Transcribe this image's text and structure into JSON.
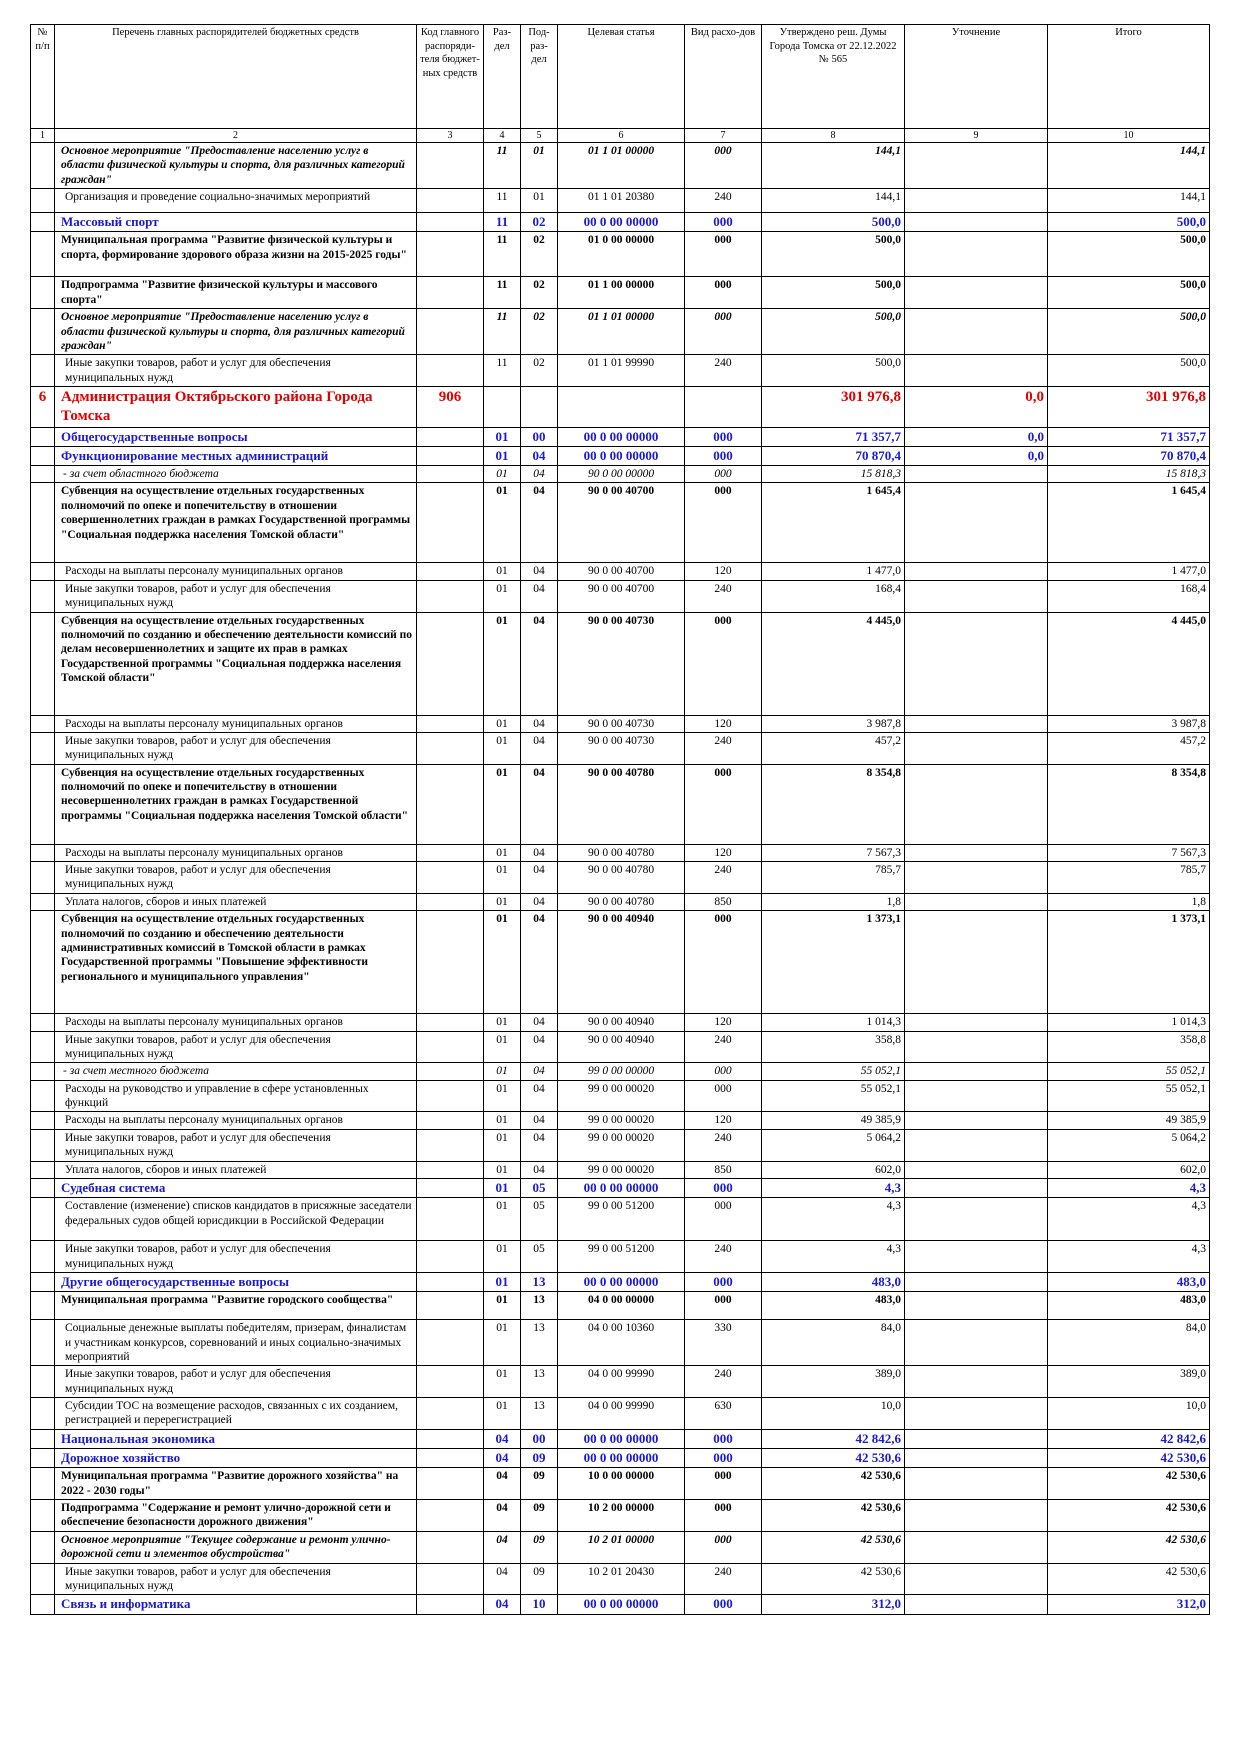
{
  "header": {
    "no": "№ п/п",
    "name": "Перечень главных распорядителей бюджетных средств",
    "code": "Код главного распоряди-теля бюджет-ных средств",
    "razdel": "Раз-дел",
    "podrazdel": "Под-раз-дел",
    "article": "Целевая статья",
    "vid": "Вид расхо-дов",
    "approved": "Утверждено реш. Думы Города Томска от 22.12.2022 № 565",
    "clarify": "Уточнение",
    "total": "Итого"
  },
  "numbers": [
    "1",
    "2",
    "3",
    "4",
    "5",
    "6",
    "7",
    "8",
    "9",
    "10"
  ],
  "rows": [
    {
      "cls": "bi",
      "h": 43,
      "no": "",
      "name": "Основное мероприятие \"Предоставление населению услуг в области физической культуры и спорта, для различных категорий граждан\"",
      "code": "",
      "rz": "11",
      "pr": "01",
      "cs": "01 1 01 00000",
      "vr": "000",
      "approved": "144,1",
      "clarify": "",
      "total": "144,1"
    },
    {
      "cls": "plain",
      "h": 24,
      "no": "",
      "name": "Организация и проведение социально-значимых мероприятий",
      "code": "",
      "rz": "11",
      "pr": "01",
      "cs": "01 1 01 20380",
      "vr": "240",
      "approved": "144,1",
      "clarify": "",
      "total": "144,1"
    },
    {
      "cls": "blue",
      "h": 17,
      "no": "",
      "name": "Массовый спорт",
      "code": "",
      "rz": "11",
      "pr": "02",
      "cs": "00 0 00 00000",
      "vr": "000",
      "approved": "500,0",
      "clarify": "",
      "total": "500,0"
    },
    {
      "cls": "bold",
      "h": 45,
      "no": "",
      "name": "Муниципальная программа \"Развитие физической культуры и спорта, формирование здорового образа жизни на 2015-2025 годы\"",
      "code": "",
      "rz": "11",
      "pr": "02",
      "cs": "01 0 00 00000",
      "vr": "000",
      "approved": "500,0",
      "clarify": "",
      "total": "500,0"
    },
    {
      "cls": "bold",
      "h": 30,
      "no": "",
      "name": "Подпрограмма \"Развитие физической культуры и массового спорта\"",
      "code": "",
      "rz": "11",
      "pr": "02",
      "cs": "01 1 00 00000",
      "vr": "000",
      "approved": "500,0",
      "clarify": "",
      "total": "500,0"
    },
    {
      "cls": "bi",
      "h": 43,
      "no": "",
      "name": "Основное мероприятие \"Предоставление населению услуг в области физической культуры и спорта, для различных категорий граждан\"",
      "code": "",
      "rz": "11",
      "pr": "02",
      "cs": "01 1 01 00000",
      "vr": "000",
      "approved": "500,0",
      "clarify": "",
      "total": "500,0"
    },
    {
      "cls": "plain",
      "h": 30,
      "no": "",
      "name": "Иные закупки товаров, работ и услуг для обеспечения муниципальных нужд",
      "code": "",
      "rz": "11",
      "pr": "02",
      "cs": "01 1 01 99990",
      "vr": "240",
      "approved": "500,0",
      "clarify": "",
      "total": "500,0"
    },
    {
      "cls": "red",
      "h": 40,
      "no": "6",
      "name": "Администрация Октябрьского района Города Томска",
      "code": "906",
      "rz": "",
      "pr": "",
      "cs": "",
      "vr": "",
      "approved": "301 976,8",
      "clarify": "0,0",
      "total": "301 976,8"
    },
    {
      "cls": "blue",
      "h": 17,
      "no": "",
      "name": "Общегосударственные вопросы",
      "code": "",
      "rz": "01",
      "pr": "00",
      "cs": "00 0 00 00000",
      "vr": "000",
      "approved": "71 357,7",
      "clarify": "0,0",
      "total": "71 357,7"
    },
    {
      "cls": "blue",
      "h": 17,
      "no": "",
      "name": "Функционирование местных администраций",
      "code": "",
      "rz": "01",
      "pr": "04",
      "cs": "00 0 00 00000",
      "vr": "000",
      "approved": "70 870,4",
      "clarify": "0,0",
      "total": "70 870,4"
    },
    {
      "cls": "it",
      "h": 17,
      "no": "",
      "name": "- за счет областного бюджета",
      "code": "",
      "rz": "01",
      "pr": "04",
      "cs": "90 0 00 00000",
      "vr": "000",
      "approved": "15 818,3",
      "clarify": "",
      "total": "15 818,3"
    },
    {
      "cls": "bold",
      "h": 80,
      "no": "",
      "name": "Субвенция на осуществление отдельных государственных полномочий по опеке и попечительству в отношении совершеннолетних граждан в рамках Государственной программы \"Социальная поддержка населения Томской области\"",
      "code": "",
      "rz": "01",
      "pr": "04",
      "cs": "90 0 00 40700",
      "vr": "000",
      "approved": "1 645,4",
      "clarify": "",
      "total": "1 645,4"
    },
    {
      "cls": "plain",
      "h": 17,
      "no": "",
      "name": "Расходы на выплаты персоналу муниципальных органов",
      "code": "",
      "rz": "01",
      "pr": "04",
      "cs": "90 0 00 40700",
      "vr": "120",
      "approved": "1 477,0",
      "clarify": "",
      "total": "1 477,0"
    },
    {
      "cls": "plain",
      "h": 28,
      "no": "",
      "name": "Иные закупки товаров, работ и услуг для обеспечения муниципальных нужд",
      "code": "",
      "rz": "01",
      "pr": "04",
      "cs": "90 0 00 40700",
      "vr": "240",
      "approved": "168,4",
      "clarify": "",
      "total": "168,4"
    },
    {
      "cls": "bold",
      "h": 103,
      "no": "",
      "name": "Субвенция на осуществление отдельных государственных полномочий по созданию и обеспечению деятельности комиссий по делам несовершеннолетних и защите их прав в рамках Государственной программы \"Социальная поддержка населения Томской области\"",
      "code": "",
      "rz": "01",
      "pr": "04",
      "cs": "90 0 00 40730",
      "vr": "000",
      "approved": "4 445,0",
      "clarify": "",
      "total": "4 445,0"
    },
    {
      "cls": "plain",
      "h": 17,
      "no": "",
      "name": "Расходы на выплаты персоналу муниципальных органов",
      "code": "",
      "rz": "01",
      "pr": "04",
      "cs": "90 0 00 40730",
      "vr": "120",
      "approved": "3 987,8",
      "clarify": "",
      "total": "3 987,8"
    },
    {
      "cls": "plain",
      "h": 28,
      "no": "",
      "name": "Иные закупки товаров, работ и услуг для обеспечения муниципальных нужд",
      "code": "",
      "rz": "01",
      "pr": "04",
      "cs": "90 0 00 40730",
      "vr": "240",
      "approved": "457,2",
      "clarify": "",
      "total": "457,2"
    },
    {
      "cls": "bold",
      "h": 80,
      "no": "",
      "name": "Субвенция на осуществление отдельных государственных полномочий по опеке и попечительству в отношении несовершеннолетних граждан в рамках Государственной программы \"Социальная поддержка населения Томской области\"",
      "code": "",
      "rz": "01",
      "pr": "04",
      "cs": "90 0 00 40780",
      "vr": "000",
      "approved": "8 354,8",
      "clarify": "",
      "total": "8 354,8"
    },
    {
      "cls": "plain",
      "h": 17,
      "no": "",
      "name": "Расходы на выплаты персоналу муниципальных органов",
      "code": "",
      "rz": "01",
      "pr": "04",
      "cs": "90 0 00 40780",
      "vr": "120",
      "approved": "7 567,3",
      "clarify": "",
      "total": "7 567,3"
    },
    {
      "cls": "plain",
      "h": 28,
      "no": "",
      "name": "Иные закупки товаров, работ и услуг для обеспечения муниципальных нужд",
      "code": "",
      "rz": "01",
      "pr": "04",
      "cs": "90 0 00 40780",
      "vr": "240",
      "approved": "785,7",
      "clarify": "",
      "total": "785,7"
    },
    {
      "cls": "plain",
      "h": 17,
      "no": "",
      "name": "Уплата налогов, сборов и иных платежей",
      "code": "",
      "rz": "01",
      "pr": "04",
      "cs": "90 0 00 40780",
      "vr": "850",
      "approved": "1,8",
      "clarify": "",
      "total": "1,8"
    },
    {
      "cls": "bold",
      "h": 103,
      "no": "",
      "name": "Субвенция на осуществление отдельных государственных полномочий по созданию и обеспечению деятельности административных комиссий в Томской области в рамках Государственной программы \"Повышение эффективности регионального и муниципального управления\"",
      "code": "",
      "rz": "01",
      "pr": "04",
      "cs": "90 0 00 40940",
      "vr": "000",
      "approved": "1 373,1",
      "clarify": "",
      "total": "1 373,1"
    },
    {
      "cls": "plain",
      "h": 17,
      "no": "",
      "name": "Расходы на выплаты персоналу муниципальных органов",
      "code": "",
      "rz": "01",
      "pr": "04",
      "cs": "90 0 00 40940",
      "vr": "120",
      "approved": "1 014,3",
      "clarify": "",
      "total": "1 014,3"
    },
    {
      "cls": "plain",
      "h": 28,
      "no": "",
      "name": "Иные закупки товаров, работ и услуг для обеспечения муниципальных нужд",
      "code": "",
      "rz": "01",
      "pr": "04",
      "cs": "90 0 00 40940",
      "vr": "240",
      "approved": "358,8",
      "clarify": "",
      "total": "358,8"
    },
    {
      "cls": "it",
      "h": 17,
      "no": "",
      "name": "- за счет местного бюджета",
      "code": "",
      "rz": "01",
      "pr": "04",
      "cs": "99 0 00 00000",
      "vr": "000",
      "approved": "55 052,1",
      "clarify": "",
      "total": "55 052,1"
    },
    {
      "cls": "plain",
      "h": 28,
      "no": "",
      "name": "Расходы на руководство и управление в сфере установленных функций",
      "code": "",
      "rz": "01",
      "pr": "04",
      "cs": "99 0 00 00020",
      "vr": "000",
      "approved": "55 052,1",
      "clarify": "",
      "total": "55 052,1"
    },
    {
      "cls": "plain",
      "h": 17,
      "no": "",
      "name": "Расходы на выплаты персоналу муниципальных органов",
      "code": "",
      "rz": "01",
      "pr": "04",
      "cs": "99 0 00 00020",
      "vr": "120",
      "approved": "49 385,9",
      "clarify": "",
      "total": "49 385,9"
    },
    {
      "cls": "plain",
      "h": 28,
      "no": "",
      "name": "Иные закупки товаров, работ и услуг для обеспечения муниципальных нужд",
      "code": "",
      "rz": "01",
      "pr": "04",
      "cs": "99 0 00 00020",
      "vr": "240",
      "approved": "5 064,2",
      "clarify": "",
      "total": "5 064,2"
    },
    {
      "cls": "plain",
      "h": 17,
      "no": "",
      "name": "Уплата налогов, сборов и иных платежей",
      "code": "",
      "rz": "01",
      "pr": "04",
      "cs": "99 0 00 00020",
      "vr": "850",
      "approved": "602,0",
      "clarify": "",
      "total": "602,0"
    },
    {
      "cls": "blue",
      "h": 17,
      "no": "",
      "name": "Судебная система",
      "code": "",
      "rz": "01",
      "pr": "05",
      "cs": "00 0 00 00000",
      "vr": "000",
      "approved": "4,3",
      "clarify": "",
      "total": "4,3"
    },
    {
      "cls": "plain",
      "h": 43,
      "no": "",
      "name": "Составление (изменение) списков кандидатов в присяжные заседатели федеральных судов общей юрисдикции в Российской Федерации",
      "code": "",
      "rz": "01",
      "pr": "05",
      "cs": "99 0 00 51200",
      "vr": "000",
      "approved": "4,3",
      "clarify": "",
      "total": "4,3"
    },
    {
      "cls": "plain",
      "h": 28,
      "no": "",
      "name": "Иные закупки товаров, работ и услуг для обеспечения муниципальных нужд",
      "code": "",
      "rz": "01",
      "pr": "05",
      "cs": "99 0 00 51200",
      "vr": "240",
      "approved": "4,3",
      "clarify": "",
      "total": "4,3"
    },
    {
      "cls": "blue",
      "h": 17,
      "no": "",
      "name": "Другие общегосударственные вопросы",
      "code": "",
      "rz": "01",
      "pr": "13",
      "cs": "00 0 00 00000",
      "vr": "000",
      "approved": "483,0",
      "clarify": "",
      "total": "483,0"
    },
    {
      "cls": "bold",
      "h": 28,
      "no": "",
      "name": "Муниципальная программа \"Развитие городского сообщества\"",
      "code": "",
      "rz": "01",
      "pr": "13",
      "cs": "04 0 00 00000",
      "vr": "000",
      "approved": "483,0",
      "clarify": "",
      "total": "483,0"
    },
    {
      "cls": "plain",
      "h": 43,
      "no": "",
      "name": "Социальные денежные выплаты победителям, призерам, финалистам и участникам конкурсов, соревнований и иных социально-значимых мероприятий",
      "code": "",
      "rz": "01",
      "pr": "13",
      "cs": "04 0 00 10360",
      "vr": "330",
      "approved": "84,0",
      "clarify": "",
      "total": "84,0"
    },
    {
      "cls": "plain",
      "h": 28,
      "no": "",
      "name": "Иные закупки товаров, работ и услуг для обеспечения муниципальных нужд",
      "code": "",
      "rz": "01",
      "pr": "13",
      "cs": "04 0 00 99990",
      "vr": "240",
      "approved": "389,0",
      "clarify": "",
      "total": "389,0"
    },
    {
      "cls": "plain",
      "h": 28,
      "no": "",
      "name": "Субсидии ТОС на возмещение расходов, связанных с их созданием, регистрацией и перерегистрацией",
      "code": "",
      "rz": "01",
      "pr": "13",
      "cs": "04 0 00 99990",
      "vr": "630",
      "approved": "10,0",
      "clarify": "",
      "total": "10,0"
    },
    {
      "cls": "blue",
      "h": 17,
      "no": "",
      "name": "Национальная экономика",
      "code": "",
      "rz": "04",
      "pr": "00",
      "cs": "00 0 00 00000",
      "vr": "000",
      "approved": "42 842,6",
      "clarify": "",
      "total": "42 842,6"
    },
    {
      "cls": "blue",
      "h": 17,
      "no": "",
      "name": "Дорожное хозяйство",
      "code": "",
      "rz": "04",
      "pr": "09",
      "cs": "00 0 00 00000",
      "vr": "000",
      "approved": "42 530,6",
      "clarify": "",
      "total": "42 530,6"
    },
    {
      "cls": "bold",
      "h": 28,
      "no": "",
      "name": "Муниципальная программа \"Развитие дорожного хозяйства\" на 2022 - 2030 годы\"",
      "code": "",
      "rz": "04",
      "pr": "09",
      "cs": "10 0 00 00000",
      "vr": "000",
      "approved": "42 530,6",
      "clarify": "",
      "total": "42 530,6"
    },
    {
      "cls": "bold",
      "h": 28,
      "no": "",
      "name": "Подпрограмма \"Содержание и ремонт улично-дорожной сети и обеспечение безопасности дорожного движения\"",
      "code": "",
      "rz": "04",
      "pr": "09",
      "cs": "10 2 00 00000",
      "vr": "000",
      "approved": "42 530,6",
      "clarify": "",
      "total": "42 530,6"
    },
    {
      "cls": "bi",
      "h": 28,
      "no": "",
      "name": "Основное мероприятие \"Текущее содержание и ремонт улично-дорожной сети и элементов обустройства\"",
      "code": "",
      "rz": "04",
      "pr": "09",
      "cs": "10 2 01 00000",
      "vr": "000",
      "approved": "42 530,6",
      "clarify": "",
      "total": "42 530,6"
    },
    {
      "cls": "plain",
      "h": 28,
      "no": "",
      "name": "Иные закупки товаров, работ и услуг для обеспечения муниципальных нужд",
      "code": "",
      "rz": "04",
      "pr": "09",
      "cs": "10 2 01 20430",
      "vr": "240",
      "approved": "42 530,6",
      "clarify": "",
      "total": "42 530,6"
    },
    {
      "cls": "blue",
      "h": 17,
      "no": "",
      "name": "Связь и информатика",
      "code": "",
      "rz": "04",
      "pr": "10",
      "cs": "00 0 00 00000",
      "vr": "000",
      "approved": "312,0",
      "clarify": "",
      "total": "312,0"
    }
  ]
}
